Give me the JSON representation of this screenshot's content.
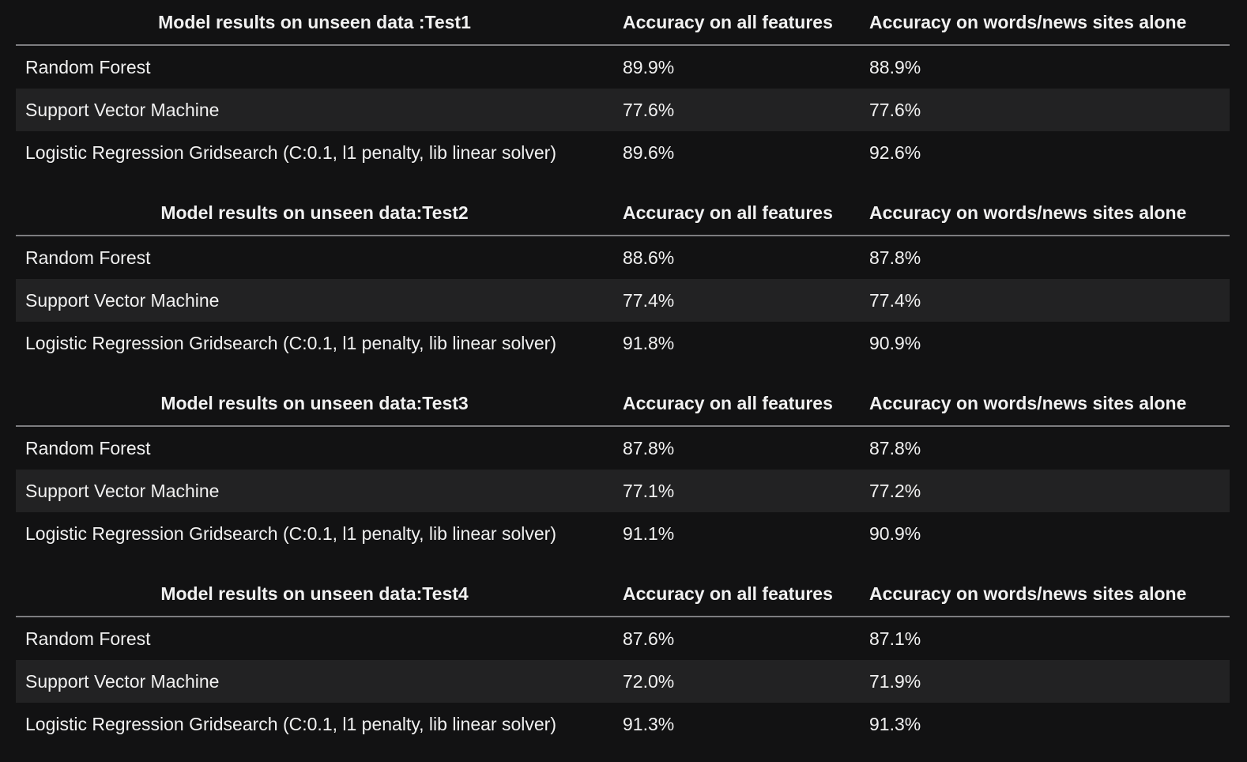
{
  "colors": {
    "background": "#121213",
    "alt_row": "#222223",
    "header_rule": "#7d7d80",
    "text": "#f1f1f1"
  },
  "column_headers": {
    "all_features": "Accuracy on all features",
    "words_sites": "Accuracy on words/news sites alone"
  },
  "tables": [
    {
      "title": "Model results on unseen data :Test1",
      "rows": [
        {
          "model": "Random Forest",
          "all_features": "89.9%",
          "words_sites": "88.9%"
        },
        {
          "model": "Support Vector Machine",
          "all_features": "77.6%",
          "words_sites": "77.6%"
        },
        {
          "model": "Logistic Regression Gridsearch (C:0.1, l1 penalty, lib linear solver)",
          "all_features": "89.6%",
          "words_sites": "92.6%"
        }
      ]
    },
    {
      "title": "Model results on unseen data:Test2",
      "rows": [
        {
          "model": "Random Forest",
          "all_features": "88.6%",
          "words_sites": "87.8%"
        },
        {
          "model": "Support Vector Machine",
          "all_features": "77.4%",
          "words_sites": "77.4%"
        },
        {
          "model": "Logistic Regression Gridsearch (C:0.1, l1 penalty, lib linear solver)",
          "all_features": "91.8%",
          "words_sites": "90.9%"
        }
      ]
    },
    {
      "title": "Model results on unseen data:Test3",
      "rows": [
        {
          "model": "Random Forest",
          "all_features": "87.8%",
          "words_sites": "87.8%"
        },
        {
          "model": "Support Vector Machine",
          "all_features": "77.1%",
          "words_sites": "77.2%"
        },
        {
          "model": "Logistic Regression Gridsearch (C:0.1, l1 penalty, lib linear solver)",
          "all_features": "91.1%",
          "words_sites": "90.9%"
        }
      ]
    },
    {
      "title": "Model results on unseen data:Test4",
      "rows": [
        {
          "model": "Random Forest",
          "all_features": "87.6%",
          "words_sites": "87.1%"
        },
        {
          "model": "Support Vector Machine",
          "all_features": "72.0%",
          "words_sites": "71.9%"
        },
        {
          "model": "Logistic Regression Gridsearch (C:0.1, l1 penalty, lib linear solver)",
          "all_features": "91.3%",
          "words_sites": "91.3%"
        }
      ]
    }
  ]
}
